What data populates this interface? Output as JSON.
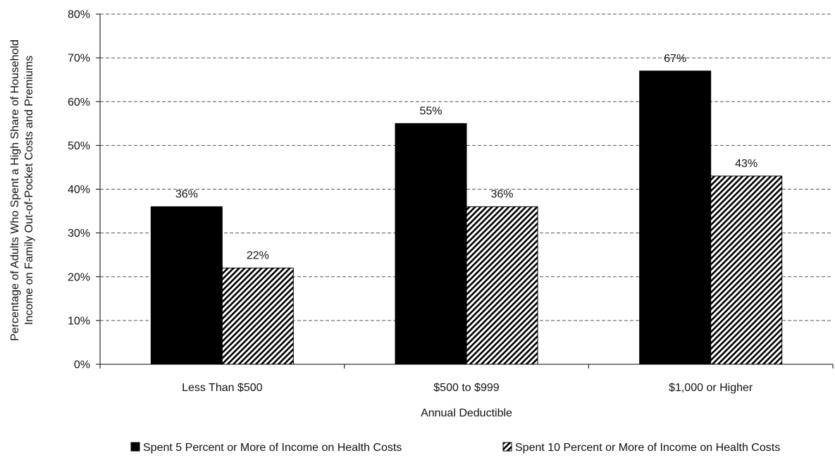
{
  "chart_data": {
    "type": "bar",
    "categories": [
      "Less Than $500",
      "$500 to $999",
      "$1,000 or Higher"
    ],
    "series": [
      {
        "name": "Spent 5 Percent or More of Income on Health Costs",
        "values": [
          36,
          55,
          67
        ],
        "labels": [
          "36%",
          "55%",
          "67%"
        ],
        "fill": "solid",
        "color": "#000000"
      },
      {
        "name": "Spent 10 Percent or More of Income on Health Costs",
        "values": [
          22,
          36,
          43
        ],
        "labels": [
          "22%",
          "36%",
          "43%"
        ],
        "fill": "hatched",
        "color": "#000000"
      }
    ],
    "xlabel": "Annual Deductible",
    "ylabel_lines": [
      "Percentage of Adults Who Spent a High Share of Household",
      "Income on Family Out-of-Pocket Costs and Premiums"
    ],
    "ylim": [
      0,
      80
    ],
    "yticks": [
      0,
      10,
      20,
      30,
      40,
      50,
      60,
      70,
      80
    ],
    "ytick_labels": [
      "0%",
      "10%",
      "20%",
      "30%",
      "40%",
      "50%",
      "60%",
      "70%",
      "80%"
    ],
    "grid": true,
    "legend_position": "bottom"
  }
}
